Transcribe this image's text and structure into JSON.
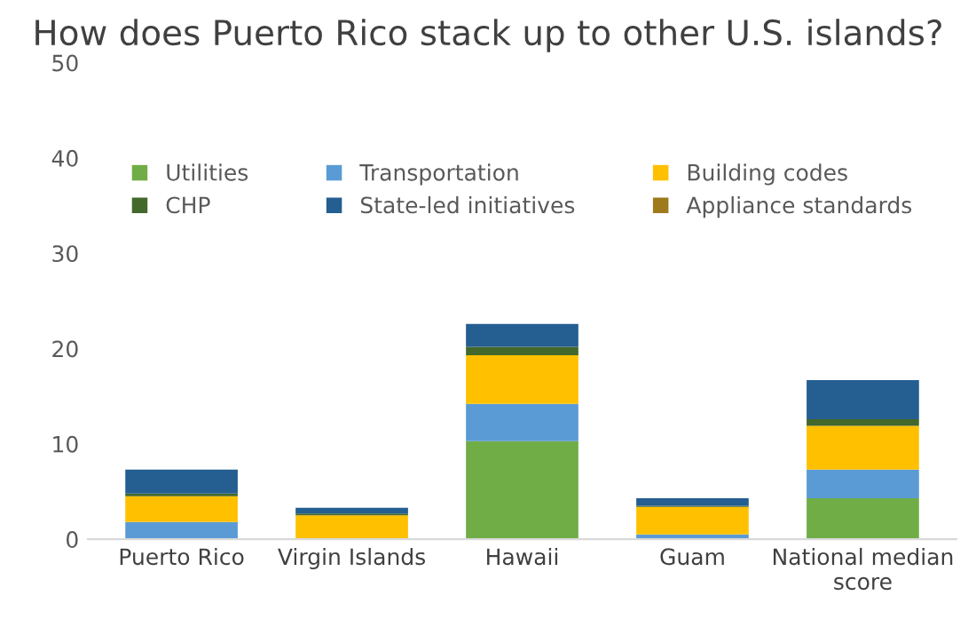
{
  "chart_data": {
    "type": "bar",
    "stacked": true,
    "title": "How does Puerto Rico stack up to other U.S. islands?",
    "categories": [
      "Puerto Rico",
      "Virgin Islands",
      "Hawaii",
      "Guam",
      "National median score"
    ],
    "series": [
      {
        "name": "Utilities",
        "color": "#70ad47",
        "values": [
          0,
          0,
          10.3,
          0,
          4.3
        ]
      },
      {
        "name": "Transportation",
        "color": "#5b9bd5",
        "values": [
          1.8,
          0,
          3.9,
          0.5,
          3.0
        ]
      },
      {
        "name": "Building codes",
        "color": "#ffc000",
        "values": [
          2.7,
          2.5,
          5.1,
          2.9,
          4.6
        ]
      },
      {
        "name": "CHP",
        "color": "#43682b",
        "values": [
          0.3,
          0.2,
          0.9,
          0.1,
          0.7
        ]
      },
      {
        "name": "State-led initiatives",
        "color": "#255e91",
        "values": [
          2.5,
          0.6,
          2.4,
          0.8,
          4.1
        ]
      },
      {
        "name": "Appliance standards",
        "color": "#9e7a1c",
        "values": [
          0,
          0,
          0,
          0,
          0
        ]
      }
    ],
    "ylim": [
      0,
      50
    ],
    "yticks": [
      0,
      10,
      20,
      30,
      40,
      50
    ],
    "grid": false,
    "legend": "top"
  }
}
